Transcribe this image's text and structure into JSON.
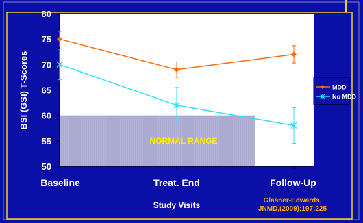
{
  "chart_data": {
    "type": "line",
    "title": "",
    "xlabel": "Study Visits",
    "ylabel": "BSI (GSI) T-Scores",
    "categories": [
      "Baseline",
      "Treat. End",
      "Follow-Up"
    ],
    "ylim": [
      50,
      80
    ],
    "yticks": [
      "50",
      "55",
      "60",
      "65",
      "70",
      "75",
      "80"
    ],
    "grid": false,
    "legend_position": "right",
    "series": [
      {
        "name": "MDD",
        "values": [
          75,
          69,
          72
        ],
        "error": [
          1.5,
          1.5,
          1.7
        ],
        "color": "#ff6a00",
        "marker": "diamond"
      },
      {
        "name": "No MDD",
        "values": [
          70,
          62,
          58
        ],
        "error": [
          3,
          3.5,
          3.5
        ],
        "color": "#33ddff",
        "marker": "asterisk"
      }
    ],
    "shaded_band": {
      "from": 50,
      "to": 60,
      "label": "NORMAL RANGE",
      "label_color": "#ffee00"
    },
    "citation": [
      "Glasner-Edwards,",
      "JNMD,(2009);197:225"
    ]
  },
  "colors": {
    "background": "#0a0fa8",
    "plot_area": "#ffffff",
    "band": "#b2b2d6",
    "border": "#f0d020",
    "text": "#ffffff",
    "citation": "#ffaa00",
    "frame": "#8a8ab0"
  }
}
